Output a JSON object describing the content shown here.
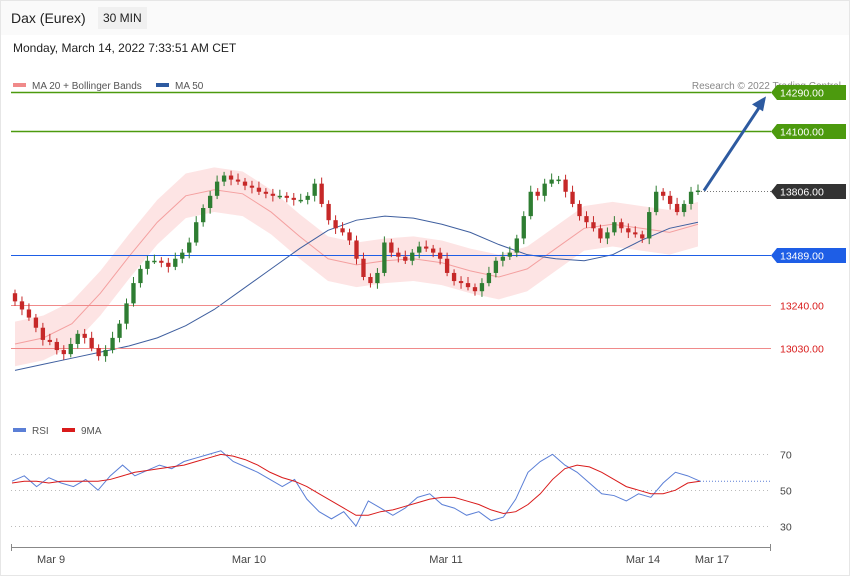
{
  "header": {
    "instrument": "Dax (Eurex)",
    "timeframe": "30 MIN"
  },
  "datetime": "Monday, March 14, 2022 7:33:51 AM CET",
  "legend": {
    "ma20": "MA 20 + Bollinger Bands",
    "ma50": "MA 50",
    "rsi": "RSI",
    "rsi_ma": "9MA"
  },
  "copyright": "Research © 2022 Trading Central",
  "colors": {
    "up": "#2e7d32",
    "down": "#c62828",
    "resistance": "#4c9a0e",
    "pivot": "#1e5ee6",
    "support": "#f08a8a",
    "ma50": "#3f5f9f",
    "bands": "#fde4e4",
    "ma20": "#f4a0a0",
    "rsi": "#5b7fd6",
    "rsi_ma": "#d91b1b",
    "arrow": "#2d5aa0"
  },
  "chart_data": [
    {
      "type": "candlestick",
      "x_ticks": [
        "Mar 9",
        "Mar 10",
        "Mar 11",
        "Mar 14",
        "Mar 17"
      ],
      "levels": [
        {
          "value": 14290.0,
          "label": "14290.00",
          "kind": "resistance"
        },
        {
          "value": 14100.0,
          "label": "14100.00",
          "kind": "resistance"
        },
        {
          "value": 13806.0,
          "label": "13806.00",
          "kind": "last"
        },
        {
          "value": 13489.0,
          "label": "13489.00",
          "kind": "pivot"
        },
        {
          "value": 13240.0,
          "label": "13240.00",
          "kind": "support"
        },
        {
          "value": 13030.0,
          "label": "13030.00",
          "kind": "support"
        }
      ],
      "forecast_arrow": {
        "from": 13806,
        "to": 14290
      },
      "close": [
        13260,
        13220,
        13180,
        13130,
        13070,
        13060,
        13020,
        13000,
        13050,
        13100,
        13080,
        13030,
        12990,
        13020,
        13080,
        13150,
        13250,
        13350,
        13420,
        13460,
        13460,
        13450,
        13430,
        13470,
        13500,
        13550,
        13650,
        13720,
        13780,
        13850,
        13880,
        13860,
        13850,
        13830,
        13820,
        13800,
        13790,
        13780,
        13780,
        13770,
        13760,
        13760,
        13780,
        13840,
        13740,
        13660,
        13620,
        13600,
        13560,
        13470,
        13380,
        13350,
        13400,
        13550,
        13500,
        13480,
        13460,
        13500,
        13530,
        13520,
        13500,
        13470,
        13400,
        13360,
        13350,
        13330,
        13310,
        13350,
        13400,
        13460,
        13480,
        13500,
        13570,
        13680,
        13800,
        13780,
        13840,
        13860,
        13860,
        13800,
        13740,
        13680,
        13650,
        13620,
        13570,
        13600,
        13650,
        13620,
        13600,
        13590,
        13570,
        13700,
        13800,
        13780,
        13740,
        13700,
        13740,
        13800,
        13806
      ],
      "ylim": [
        12700,
        14400
      ],
      "series": [
        {
          "name": "MA 50",
          "values": [
            12920,
            12950,
            12980,
            13010,
            13040,
            13080,
            13140,
            13220,
            13320,
            13420,
            13520,
            13610,
            13660,
            13680,
            13670,
            13640,
            13600,
            13540,
            13490,
            13470,
            13460,
            13490,
            13560,
            13620,
            13650
          ]
        },
        {
          "name": "MA 20",
          "values": [
            13050,
            13080,
            13150,
            13300,
            13480,
            13650,
            13780,
            13810,
            13790,
            13700,
            13580,
            13470,
            13440,
            13460,
            13470,
            13450,
            13410,
            13380,
            13420,
            13520,
            13620,
            13640,
            13620,
            13600,
            13640
          ]
        }
      ]
    },
    {
      "type": "line",
      "title": "RSI",
      "ylim": [
        25,
        78
      ],
      "y_ticks": [
        30,
        50,
        70
      ],
      "series": [
        {
          "name": "RSI",
          "values": [
            55,
            58,
            52,
            57,
            54,
            52,
            56,
            50,
            58,
            64,
            58,
            61,
            64,
            62,
            66,
            68,
            70,
            72,
            66,
            63,
            60,
            56,
            52,
            56,
            45,
            38,
            34,
            38,
            30,
            44,
            40,
            36,
            40,
            46,
            48,
            42,
            40,
            36,
            38,
            33,
            35,
            45,
            60,
            66,
            70,
            64,
            60,
            54,
            48,
            47,
            44,
            48,
            46,
            54,
            60,
            58,
            55
          ]
        },
        {
          "name": "9MA",
          "values": [
            54,
            55,
            55,
            54,
            55,
            55,
            55,
            55,
            56,
            58,
            60,
            61,
            62,
            63,
            64,
            66,
            68,
            70,
            69,
            67,
            64,
            60,
            57,
            55,
            52,
            48,
            44,
            40,
            36,
            36,
            38,
            39,
            41,
            43,
            45,
            46,
            46,
            44,
            42,
            39,
            37,
            38,
            42,
            48,
            56,
            62,
            64,
            63,
            60,
            56,
            52,
            50,
            48,
            48,
            50,
            54,
            55
          ]
        }
      ]
    }
  ]
}
